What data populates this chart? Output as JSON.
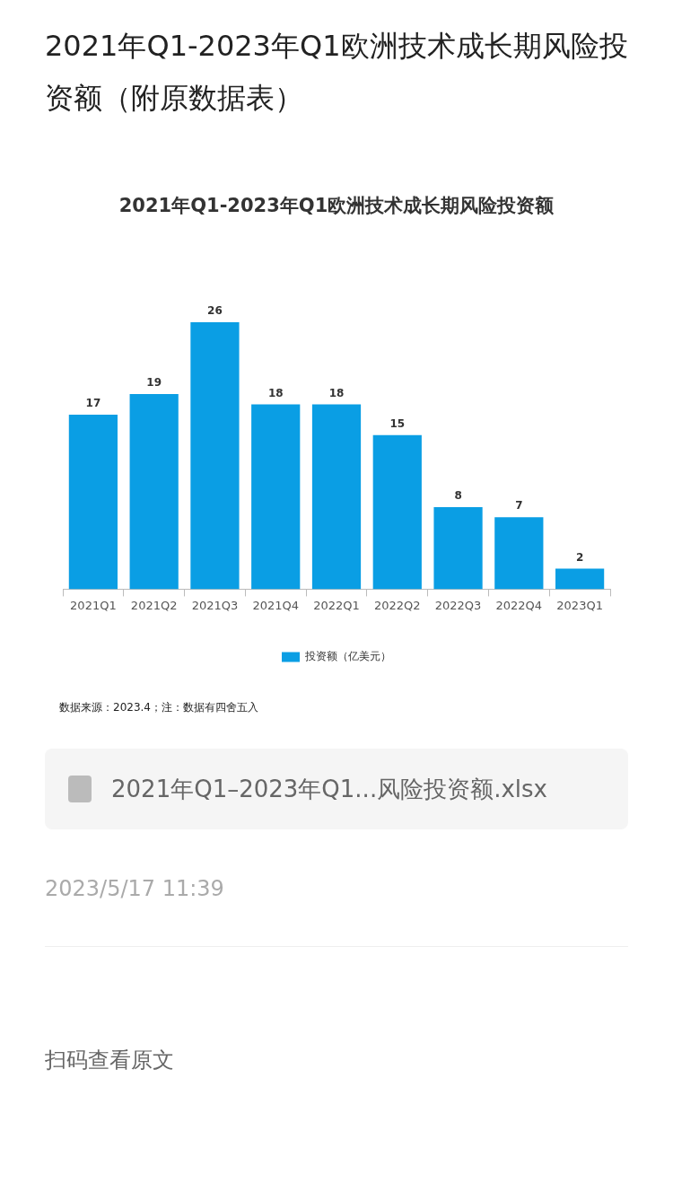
{
  "chart_data": {
    "type": "bar",
    "title": "2021年Q1-2023年Q1欧洲技术成长期风险投资额（附原数据表）",
    "subtitle": "2021年Q1-2023年Q1欧洲技术成长期风险投资额",
    "categories": [
      "2021Q1",
      "2021Q2",
      "2021Q3",
      "2021Q4",
      "2022Q1",
      "2022Q2",
      "2022Q3",
      "2022Q4",
      "2023Q1"
    ],
    "series": [
      {
        "name": "投资额（亿美元）",
        "color": "#0a9ee4",
        "values": [
          17,
          19,
          26,
          18,
          18,
          15,
          8,
          7,
          2
        ]
      }
    ],
    "data_labels": true,
    "grid": false,
    "legend": "bottom",
    "annotations": [
      "数据来源：2023.4；注：数据有四舍五入",
      "2021年Q1–2023年Q1...风险投资额.xlsx",
      "2023/5/17 11:39",
      "扫码查看原文"
    ]
  }
}
